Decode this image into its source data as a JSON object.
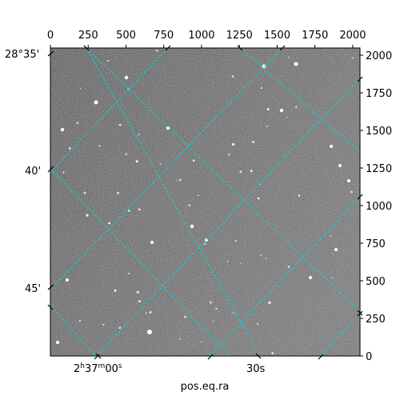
{
  "figure": {
    "xlabel": "pos.eq.ra",
    "ra_tick_labels": [
      {
        "hours": "2",
        "minutes": "37",
        "seconds": "00",
        "text_full": "2h37m00s"
      },
      {
        "text": "30s"
      }
    ],
    "dec_tick_labels": [
      "28°35'",
      "40'",
      "45'"
    ],
    "top_pixel_ticks": [
      "0",
      "250",
      "500",
      "750",
      "1000",
      "1250",
      "1500",
      "1750",
      "2000"
    ],
    "right_pixel_ticks": [
      "0",
      "250",
      "500",
      "750",
      "1000",
      "1250",
      "1500",
      "1750",
      "2000"
    ],
    "grid_color": "#00d8d8"
  }
}
